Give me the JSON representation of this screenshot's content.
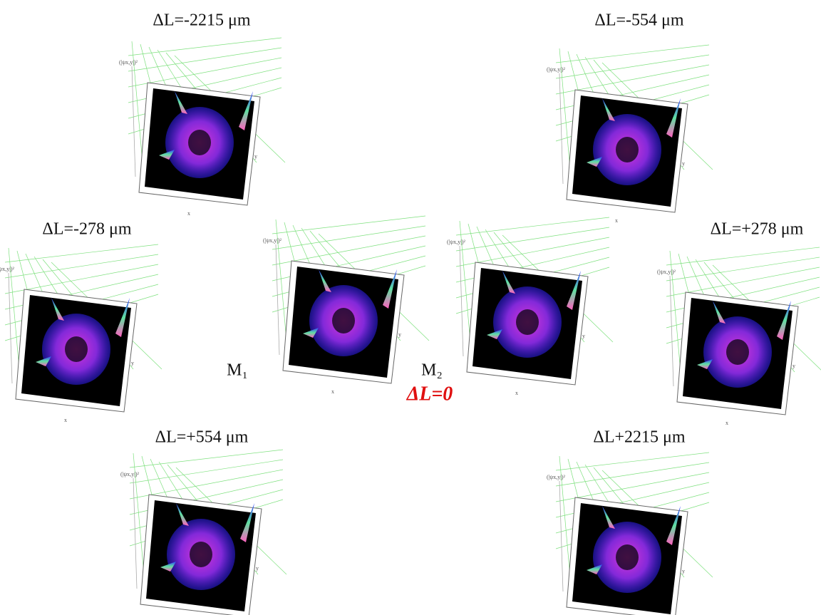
{
  "panels": [
    {
      "label": "ΔL=-2215 μm",
      "z_axis": "(|ψx,y|)²",
      "x_axis": "x",
      "y_axis": "y"
    },
    {
      "label": "ΔL=-554 μm",
      "z_axis": "(|ψx,y|)²",
      "x_axis": "x",
      "y_axis": "y"
    },
    {
      "label": "ΔL=-278 μm",
      "z_axis": "(|ψx,y|)²",
      "x_axis": "x",
      "y_axis": "y"
    },
    {
      "z_axis": "(|ψx,y|)²",
      "x_axis": "x",
      "y_axis": "y"
    },
    {
      "z_axis": "(|ψx,y|)²",
      "x_axis": "x",
      "y_axis": "y"
    },
    {
      "label": "ΔL=+278 μm",
      "z_axis": "(|ψx,y|)²",
      "x_axis": "x",
      "y_axis": "y"
    },
    {
      "label": "ΔL=+554 μm",
      "z_axis": "(|ψx,y|)²",
      "x_axis": "x",
      "y_axis": "y"
    },
    {
      "label": "ΔL+2215 μm",
      "z_axis": "(|ψx,y|)²",
      "x_axis": "x",
      "y_axis": "y"
    }
  ],
  "mirror_1": "M₁",
  "mirror_2": "M₂",
  "center_label": "ΔL=0"
}
